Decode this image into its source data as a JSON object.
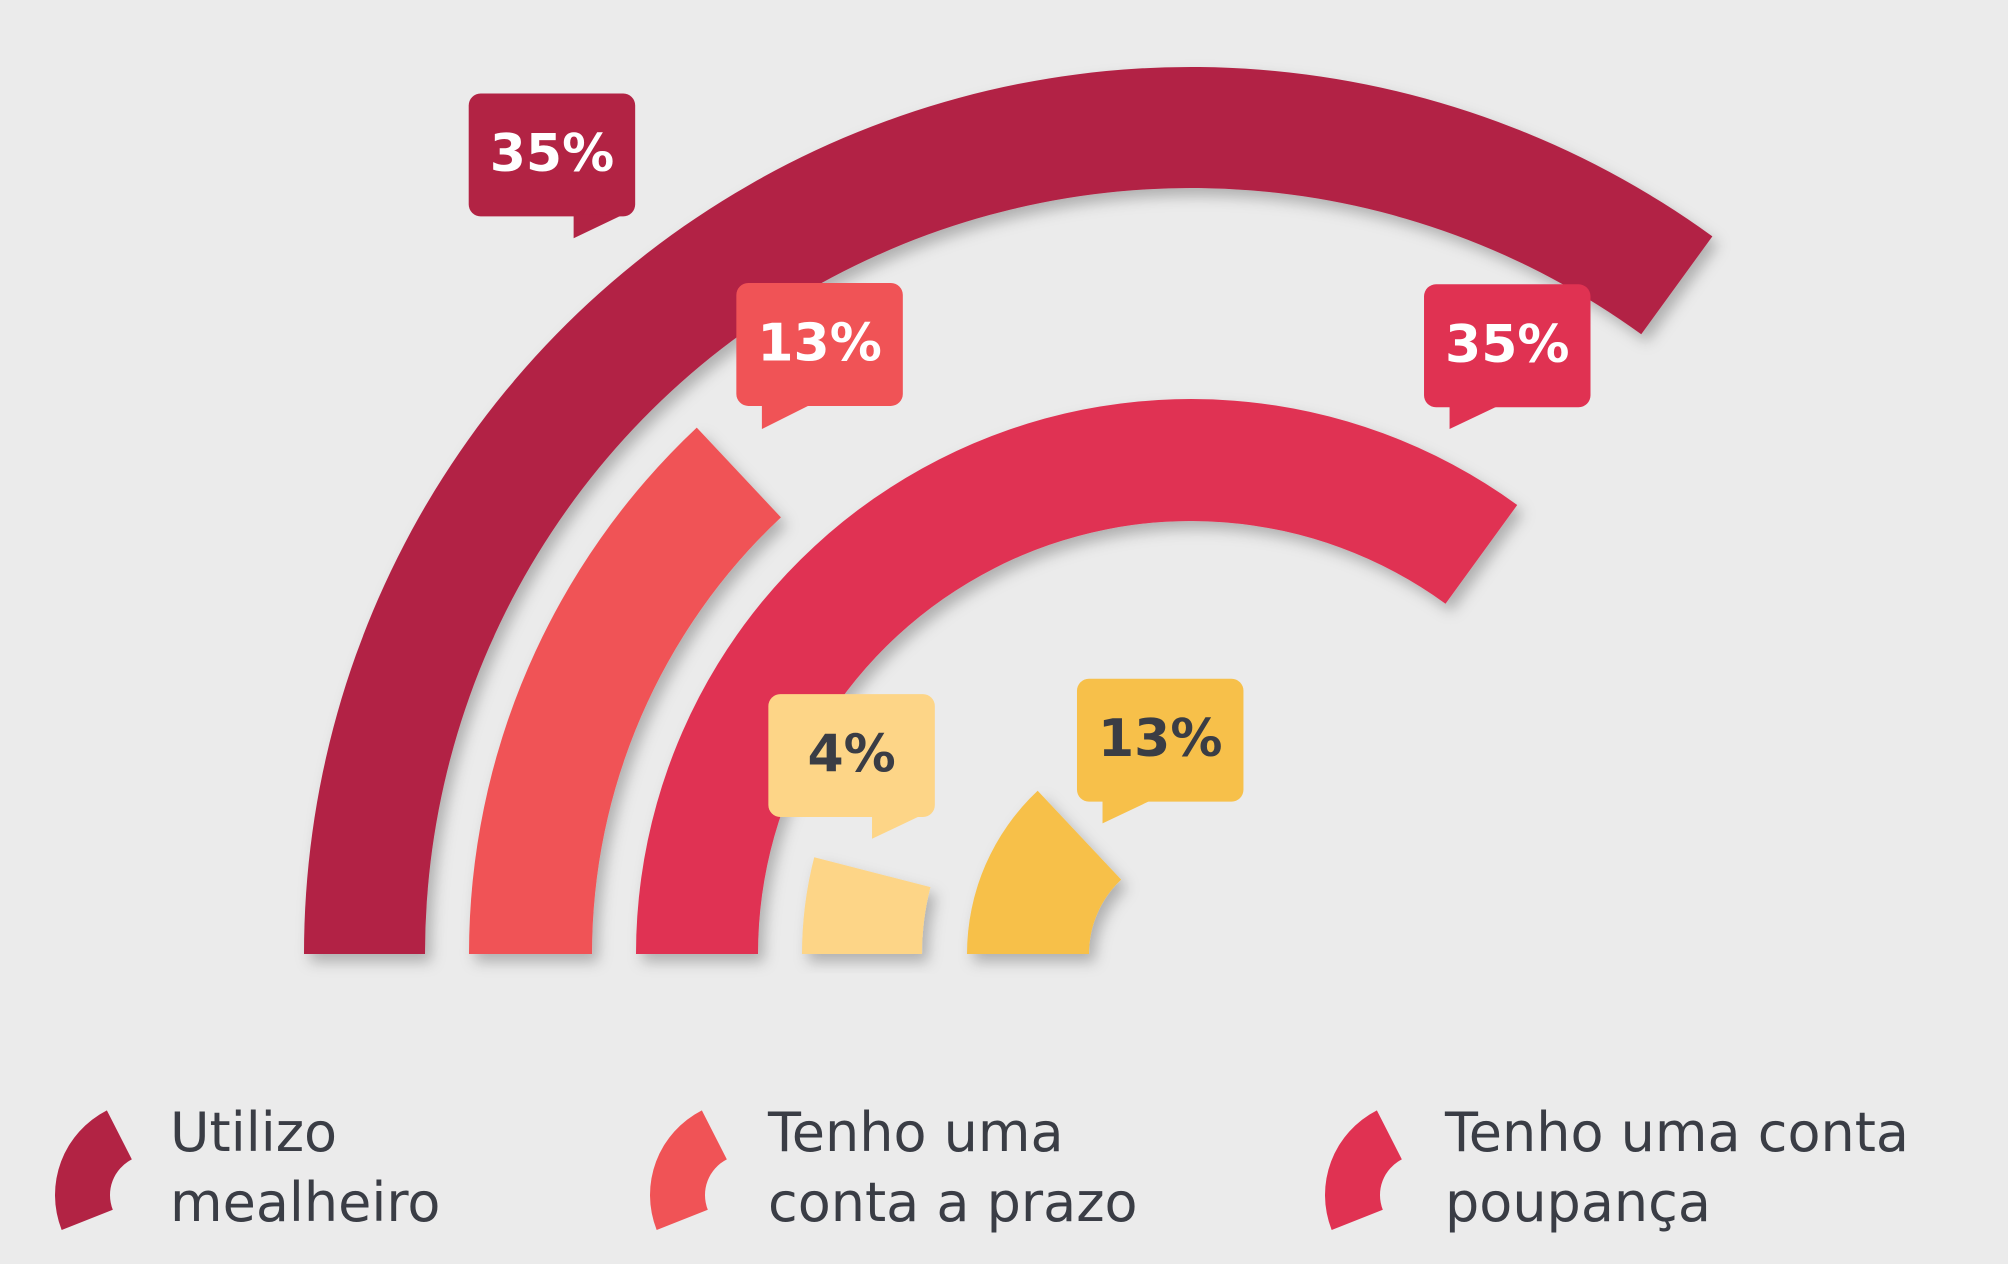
{
  "chart_data": {
    "type": "radial_bar",
    "categories": [
      "Utilizo mealheiro",
      "Tenho uma conta a prazo",
      "Tenho uma conta poupança",
      null,
      null
    ],
    "values": [
      35,
      13,
      35,
      4,
      13
    ],
    "value_labels": [
      "35%",
      "13%",
      "35%",
      "4%",
      "13%"
    ],
    "colors": [
      "#b22344",
      "#f05356",
      "#e03252",
      "#fdd587",
      "#f7c04a"
    ],
    "label_colors": [
      "#ffffff",
      "#ffffff",
      "#ffffff",
      "#3a3d45",
      "#3a3d45"
    ],
    "xlim": [
      0,
      100
    ]
  }
}
